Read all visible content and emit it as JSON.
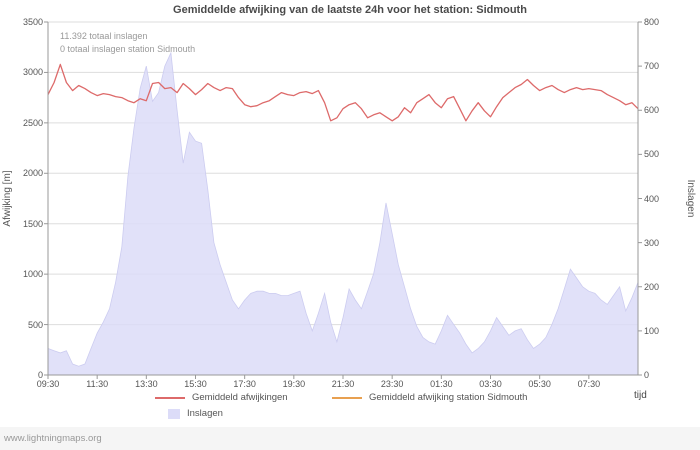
{
  "annotations": {
    "total_strikes": "11.392 totaal inslagen",
    "station_strikes": "0 totaal inslagen station Sidmouth"
  },
  "footer": {
    "watermark": "www.lightningmaps.org"
  },
  "chart_data": {
    "type": "line",
    "title": "Gemiddelde afwijking van de laatste 24h voor het station: Sidmouth",
    "grid": true,
    "grid_color": "#dddddd",
    "axis_color": "#999999",
    "legend_position": "bottom",
    "left_axis": {
      "label": "Afwijking  [m]",
      "min": 0,
      "max": 3500,
      "tick_step": 500
    },
    "right_axis": {
      "label": "Inslagen",
      "min": 0,
      "max": 800,
      "tick_step": 100
    },
    "x_axis": {
      "label": "tijd",
      "tick_labels": [
        "09:30",
        "11:30",
        "13:30",
        "15:30",
        "17:30",
        "19:30",
        "21:30",
        "23:30",
        "01:30",
        "03:30",
        "05:30",
        "07:30"
      ],
      "total_tick_slots": 12,
      "span_hours": 24,
      "sample_interval_minutes": 15
    },
    "series": [
      {
        "name": "Gemiddeld afwijkingen",
        "type": "line",
        "axis": "left",
        "color": "#dd6a6a",
        "values": [
          2780,
          2900,
          3080,
          2900,
          2820,
          2870,
          2840,
          2800,
          2770,
          2790,
          2780,
          2760,
          2750,
          2720,
          2700,
          2740,
          2720,
          2890,
          2900,
          2840,
          2850,
          2800,
          2890,
          2840,
          2780,
          2830,
          2890,
          2850,
          2820,
          2850,
          2840,
          2750,
          2680,
          2660,
          2670,
          2700,
          2720,
          2760,
          2800,
          2780,
          2770,
          2800,
          2810,
          2790,
          2820,
          2700,
          2520,
          2550,
          2640,
          2680,
          2700,
          2640,
          2550,
          2580,
          2600,
          2560,
          2520,
          2560,
          2650,
          2600,
          2700,
          2740,
          2780,
          2700,
          2650,
          2740,
          2760,
          2640,
          2520,
          2620,
          2700,
          2620,
          2560,
          2660,
          2750,
          2800,
          2850,
          2880,
          2930,
          2870,
          2820,
          2850,
          2870,
          2830,
          2800,
          2830,
          2850,
          2830,
          2840,
          2830,
          2820,
          2780,
          2750,
          2720,
          2680,
          2700,
          2640
        ]
      },
      {
        "name": "Gemiddeld afwijking station Sidmouth",
        "type": "line",
        "axis": "left",
        "color": "#e8a050",
        "values": []
      },
      {
        "name": "Inslagen",
        "type": "area",
        "axis": "right",
        "color": "#dcdcf8",
        "edge_color": "#ccccf0",
        "values": [
          60,
          55,
          50,
          55,
          25,
          20,
          25,
          60,
          95,
          120,
          150,
          210,
          290,
          450,
          560,
          650,
          700,
          620,
          640,
          700,
          730,
          600,
          480,
          550,
          530,
          525,
          420,
          300,
          250,
          210,
          170,
          150,
          170,
          185,
          190,
          190,
          185,
          185,
          180,
          180,
          185,
          190,
          140,
          100,
          140,
          185,
          120,
          75,
          130,
          195,
          170,
          150,
          190,
          230,
          300,
          390,
          320,
          250,
          200,
          150,
          110,
          85,
          75,
          70,
          100,
          135,
          115,
          95,
          70,
          50,
          60,
          75,
          100,
          130,
          110,
          90,
          100,
          105,
          80,
          60,
          70,
          85,
          115,
          150,
          195,
          240,
          220,
          200,
          190,
          185,
          170,
          160,
          180,
          200,
          145,
          175,
          210
        ]
      }
    ]
  }
}
